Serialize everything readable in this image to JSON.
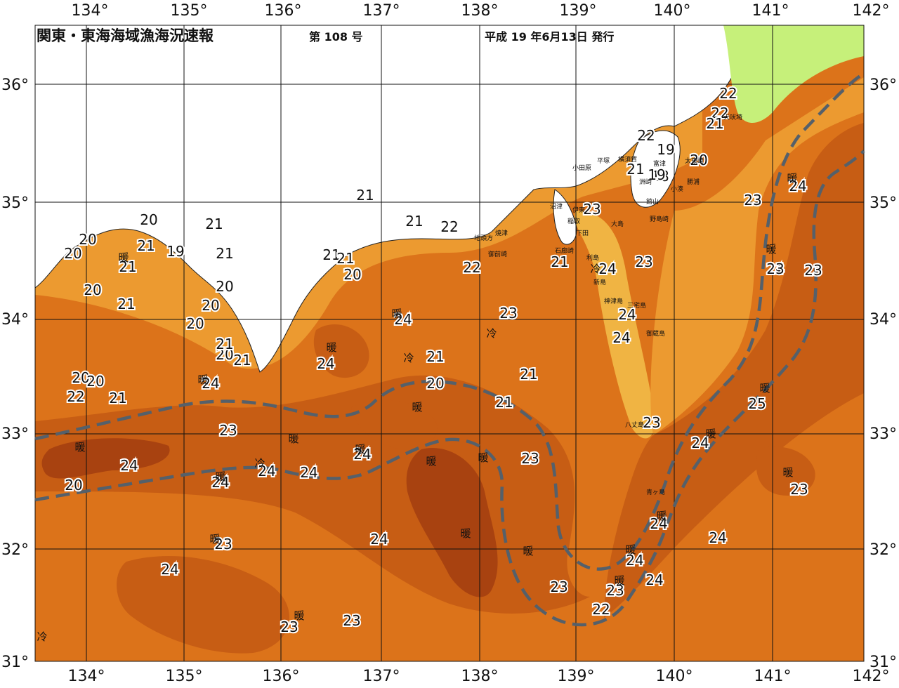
{
  "header": {
    "title": "関東・東海海域漁海況速報",
    "issue": "第 108 号",
    "date": "平成 19 年6月13日 発行"
  },
  "axes": {
    "lon_labels": [
      "134°",
      "135°",
      "136°",
      "137°",
      "138°",
      "139°",
      "140°",
      "141°",
      "142°"
    ],
    "lat_labels": [
      "36°",
      "35°",
      "34°",
      "33°",
      "32°",
      "31°"
    ]
  },
  "colors": {
    "sea_18_19": "#f3c65c",
    "sea_20": "#f0b443",
    "sea_21": "#ec9a30",
    "sea_22": "#e88725",
    "sea_23": "#dc731a",
    "sea_24": "#c75d14",
    "sea_25": "#a84210",
    "land_shallow": "#c6f07a",
    "kuroshio_axis": "#55606a"
  },
  "isotherm_labels": [
    "20",
    "20",
    "20",
    "21",
    "21",
    "21",
    "21",
    "19",
    "20",
    "21",
    "20",
    "20",
    "20",
    "20",
    "21",
    "21",
    "20",
    "20",
    "22",
    "21",
    "21",
    "21",
    "22",
    "21",
    "21",
    "20",
    "22",
    "22",
    "21",
    "18",
    "19",
    "19",
    "22",
    "22",
    "21",
    "20",
    "23",
    "24",
    "24",
    "23",
    "23",
    "24",
    "24",
    "21",
    "21",
    "20",
    "21",
    "21",
    "23",
    "24",
    "23",
    "24",
    "24",
    "24",
    "23",
    "24",
    "20",
    "24",
    "24",
    "24",
    "24",
    "23",
    "25",
    "24",
    "23",
    "24",
    "24",
    "24",
    "23",
    "22",
    "23",
    "24",
    "24",
    "23",
    "24",
    "23",
    "23",
    "23",
    "23",
    "24",
    "24",
    "23",
    "24"
  ],
  "marks": {
    "warm_labels": [
      "暖",
      "暖",
      "暖",
      "暖",
      "暖",
      "暖",
      "暖",
      "暖",
      "暖",
      "暖",
      "暖",
      "暖",
      "暖",
      "暖",
      "暖",
      "暖",
      "暖",
      "暖",
      "暖",
      "暖",
      "暖",
      "暖",
      "暖"
    ],
    "cold_labels": [
      "冷",
      "冷",
      "冷",
      "冷",
      "冷"
    ]
  },
  "place_names": [
    "小田原",
    "平塚",
    "横須賀",
    "富津",
    "太東崎",
    "勝浦",
    "小湊",
    "洲崎",
    "館山",
    "野島崎",
    "伊東",
    "稲取",
    "下田",
    "石廊崎",
    "沼津",
    "焼津",
    "地頭方",
    "御前崎",
    "大島",
    "利島",
    "新島",
    "神津島",
    "三宅島",
    "御蔵島",
    "八丈島",
    "青ヶ島",
    "犬吠埼"
  ]
}
